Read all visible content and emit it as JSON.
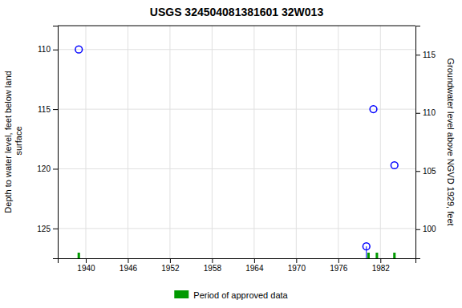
{
  "chart_data": {
    "type": "scatter",
    "title": "USGS 324504081381601 32W013",
    "xlim": [
      1936,
      1987
    ],
    "xticks": [
      1940,
      1946,
      1952,
      1958,
      1964,
      1970,
      1976,
      1982
    ],
    "ylim": [
      127.5,
      108.0
    ],
    "yticks": [
      110,
      115,
      120,
      125
    ],
    "y2lim": [
      97.5,
      117.5
    ],
    "y2ticks": [
      115,
      110,
      105,
      100
    ],
    "ylabel": "Depth to water level, feet below land\n surface",
    "y2label": "Groundwater level above NGVD 1929, feet",
    "grid": true,
    "legend": "bottom",
    "series": [
      {
        "type": "scatter",
        "color": "blue",
        "marker": "circle",
        "x": [
          1939,
          1981,
          1984
        ],
        "values": [
          110.0,
          115.0,
          119.7
        ]
      },
      {
        "type": "stem",
        "color": "blue",
        "marker": "circle",
        "x": [
          1980
        ],
        "values": [
          126.5
        ]
      },
      {
        "type": "period",
        "name": "Period of approved data",
        "color": "#009900",
        "x": [
          1939.0,
          1980.3,
          1981.5,
          1984.0
        ],
        "width": 0.35
      }
    ]
  }
}
